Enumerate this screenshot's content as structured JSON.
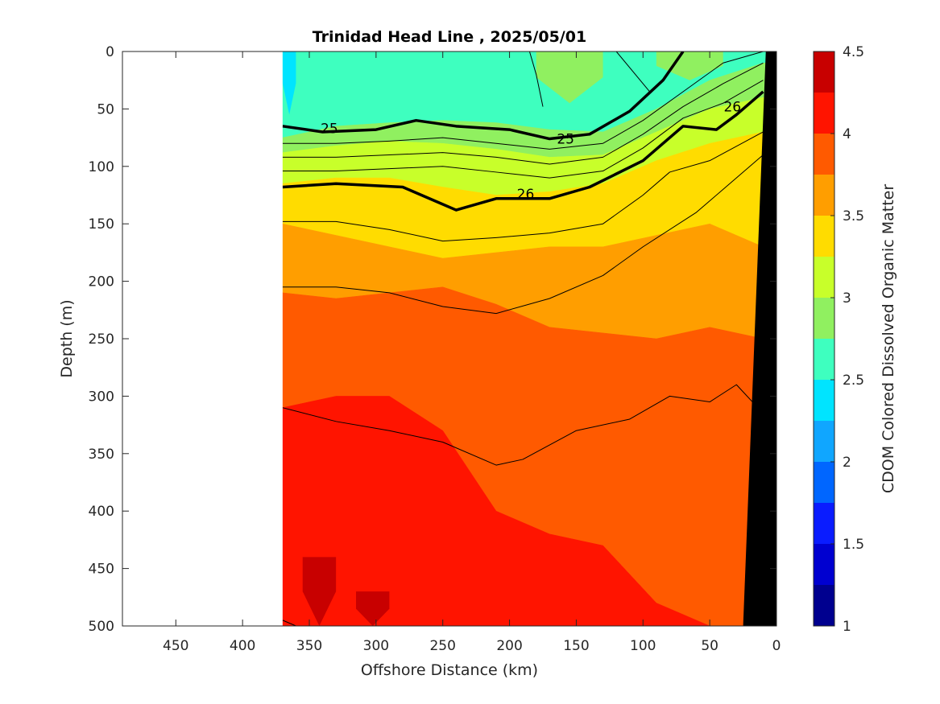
{
  "chart_data": {
    "type": "heatmap",
    "title": "Trinidad Head Line , 2025/05/01",
    "xlabel": "Offshore Distance (km)",
    "ylabel": "Depth (m)",
    "colorbar_label": "CDOM Colored Dissolved Organic Matter",
    "xlim": [
      490,
      0
    ],
    "ylim": [
      0,
      500
    ],
    "x_ticks": [
      "450",
      "400",
      "350",
      "300",
      "250",
      "200",
      "150",
      "100",
      "50",
      "0"
    ],
    "x_tick_values": [
      450,
      400,
      350,
      300,
      250,
      200,
      150,
      100,
      50,
      0
    ],
    "y_ticks": [
      "0",
      "50",
      "100",
      "150",
      "200",
      "250",
      "300",
      "350",
      "400",
      "450",
      "500"
    ],
    "y_tick_values": [
      0,
      50,
      100,
      150,
      200,
      250,
      300,
      350,
      400,
      450,
      500
    ],
    "colorbar": {
      "min": 1,
      "max": 4.5,
      "ticks": [
        "1",
        "1.5",
        "2",
        "2.5",
        "3",
        "3.5",
        "4",
        "4.5"
      ],
      "tick_values": [
        1,
        1.5,
        2,
        2.5,
        3,
        3.5,
        4,
        4.5
      ],
      "levels": [
        1.0,
        1.25,
        1.5,
        1.75,
        2.0,
        2.25,
        2.5,
        2.75,
        3.0,
        3.25,
        3.5,
        3.75,
        4.0,
        4.25,
        4.5
      ],
      "colors": [
        "#00008f",
        "#0000d0",
        "#0a1cff",
        "#0066ff",
        "#10a6ff",
        "#00e4ff",
        "#3effbf",
        "#90f060",
        "#c8ff2a",
        "#ffdc00",
        "#ff9e00",
        "#ff5a00",
        "#ff1400",
        "#c80000"
      ]
    },
    "data_extent_x": [
      370,
      0
    ],
    "shading": {
      "x": [
        370,
        330,
        290,
        250,
        210,
        170,
        130,
        90,
        50,
        10
      ],
      "bands": [
        {
          "value_range": [
            2.5,
            2.75
          ],
          "depth_bottom": [
            75,
            65,
            62,
            60,
            62,
            68,
            70,
            50,
            25,
            10
          ]
        },
        {
          "value_range": [
            2.75,
            3.0
          ],
          "depth_bottom": [
            88,
            82,
            78,
            80,
            85,
            92,
            90,
            70,
            50,
            40
          ]
        },
        {
          "value_range": [
            3.0,
            3.25
          ],
          "depth_bottom": [
            115,
            110,
            110,
            118,
            125,
            122,
            115,
            95,
            80,
            70
          ]
        },
        {
          "value_range": [
            3.25,
            3.5
          ],
          "depth_bottom": [
            150,
            160,
            170,
            180,
            175,
            170,
            170,
            160,
            150,
            170
          ]
        },
        {
          "value_range": [
            3.5,
            3.75
          ],
          "depth_bottom": [
            210,
            215,
            210,
            205,
            220,
            240,
            245,
            250,
            240,
            250
          ]
        },
        {
          "value_range": [
            3.75,
            4.0
          ],
          "depth_bottom": [
            310,
            300,
            300,
            330,
            400,
            420,
            430,
            480,
            500,
            500
          ]
        },
        {
          "value_range": [
            4.0,
            4.25
          ],
          "depth_bottom": [
            500,
            500,
            500,
            500,
            500,
            500,
            500,
            500,
            500,
            500
          ]
        }
      ],
      "deep_patches": [
        {
          "value_range": [
            4.25,
            4.5
          ],
          "x": [
            355,
            330
          ],
          "depth": [
            440,
            500
          ]
        },
        {
          "value_range": [
            4.25,
            4.5
          ],
          "x": [
            315,
            290
          ],
          "depth": [
            470,
            500
          ]
        }
      ],
      "surface_patches": [
        {
          "value_range": [
            2.25,
            2.5
          ],
          "x": [
            370,
            360
          ],
          "depth": [
            0,
            55
          ]
        },
        {
          "value_range": [
            2.75,
            3.0
          ],
          "x": [
            180,
            130
          ],
          "depth": [
            0,
            45
          ]
        },
        {
          "value_range": [
            2.75,
            3.0
          ],
          "x": [
            90,
            40
          ],
          "depth": [
            0,
            25
          ]
        }
      ]
    },
    "bathymetry": {
      "x": [
        25,
        8,
        0,
        0
      ],
      "depth": [
        500,
        0,
        0,
        500
      ],
      "color": "#000000"
    },
    "contours": [
      {
        "value": "25",
        "bold": true,
        "x": [
          370,
          340,
          300,
          270,
          240,
          200,
          170,
          140,
          110,
          85,
          70
        ],
        "depth": [
          65,
          70,
          68,
          60,
          65,
          68,
          76,
          72,
          52,
          25,
          0
        ],
        "labels": [
          {
            "text": "25",
            "x": 335,
            "depth": 67
          },
          {
            "text": "25",
            "x": 158,
            "depth": 76
          }
        ]
      },
      {
        "value": "26",
        "bold": true,
        "x": [
          370,
          330,
          280,
          240,
          210,
          170,
          140,
          100,
          70,
          45,
          30,
          10
        ],
        "depth": [
          118,
          115,
          118,
          138,
          128,
          128,
          118,
          95,
          65,
          68,
          55,
          35
        ],
        "labels": [
          {
            "text": "26",
            "x": 188,
            "depth": 124
          },
          {
            "text": "26",
            "x": 33,
            "depth": 48
          }
        ]
      },
      {
        "value": "",
        "bold": false,
        "x": [
          370,
          330,
          290,
          250,
          210,
          170,
          130,
          100,
          70,
          40,
          10
        ],
        "depth": [
          80,
          80,
          78,
          75,
          80,
          85,
          80,
          60,
          35,
          10,
          0
        ]
      },
      {
        "value": "",
        "bold": false,
        "x": [
          370,
          330,
          290,
          250,
          210,
          170,
          130,
          100,
          70,
          40,
          10
        ],
        "depth": [
          92,
          92,
          90,
          88,
          92,
          98,
          92,
          72,
          48,
          28,
          10
        ]
      },
      {
        "value": "",
        "bold": false,
        "x": [
          370,
          330,
          290,
          250,
          210,
          170,
          130,
          100,
          70,
          40,
          10
        ],
        "depth": [
          104,
          104,
          102,
          100,
          105,
          110,
          104,
          84,
          58,
          45,
          25
        ]
      },
      {
        "value": "",
        "bold": false,
        "x": [
          370,
          330,
          290,
          250,
          210,
          170,
          130,
          100,
          80,
          50,
          10
        ],
        "depth": [
          148,
          148,
          155,
          165,
          162,
          158,
          150,
          125,
          105,
          95,
          70
        ]
      },
      {
        "value": "",
        "bold": false,
        "x": [
          370,
          330,
          290,
          250,
          210,
          170,
          130,
          100,
          60,
          40,
          10
        ],
        "depth": [
          205,
          205,
          210,
          222,
          228,
          215,
          195,
          170,
          140,
          120,
          90
        ]
      },
      {
        "value": "",
        "bold": false,
        "x": [
          370,
          330,
          290,
          250,
          210,
          190,
          150,
          110,
          80,
          50,
          30,
          10
        ],
        "depth": [
          310,
          322,
          330,
          340,
          360,
          355,
          330,
          320,
          300,
          305,
          290,
          315
        ]
      },
      {
        "value": "",
        "bold": false,
        "x": [
          370,
          360
        ],
        "depth": [
          495,
          500
        ]
      },
      {
        "value": "",
        "bold": false,
        "x": [
          185,
          180,
          175
        ],
        "depth": [
          0,
          20,
          48
        ]
      },
      {
        "value": "",
        "bold": false,
        "x": [
          120,
          95
        ],
        "depth": [
          0,
          35
        ]
      }
    ]
  }
}
